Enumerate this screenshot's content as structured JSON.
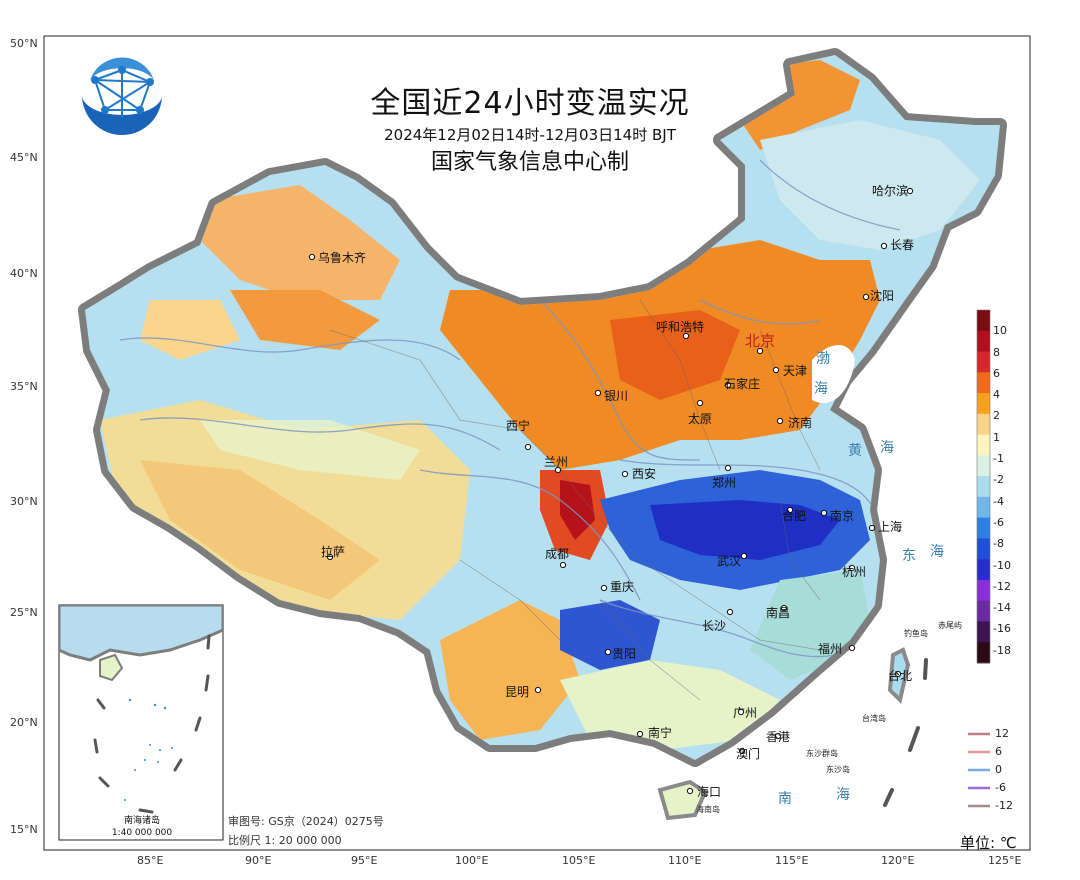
{
  "title": "全国近24小时变温实况",
  "time_range": "2024年12月02日14时-12月03日14时 BJT",
  "organization": "国家气象信息中心制",
  "lat_labels": [
    "50°N",
    "45°N",
    "40°N",
    "35°N",
    "30°N",
    "25°N",
    "20°N",
    "15°N"
  ],
  "lon_labels": [
    "85°E",
    "90°E",
    "95°E",
    "100°E",
    "105°E",
    "110°E",
    "115°E",
    "120°E",
    "125°E"
  ],
  "legend": {
    "labels": [
      "10",
      "8",
      "6",
      "4",
      "2",
      "1",
      "-1",
      "-2",
      "-4",
      "-6",
      "-8",
      "-10",
      "-12",
      "-14",
      "-16",
      "-18"
    ],
    "colors": [
      "#7a0a14",
      "#b0101e",
      "#d9262a",
      "#ef6a1c",
      "#f7a020",
      "#f9d487",
      "#fbf4bd",
      "#d9f0e2",
      "#a9dcef",
      "#70b6ea",
      "#2f7fe0",
      "#1f4fd6",
      "#2a2cd0",
      "#8a2fd6",
      "#6a2aa0",
      "#3c1450",
      "#2a0a14"
    ]
  },
  "contour_legend": [
    {
      "label": "12",
      "color": "#c07a8a"
    },
    {
      "label": "6",
      "color": "#e09a98"
    },
    {
      "label": "0",
      "color": "#7aa8e0"
    },
    {
      "label": "-6",
      "color": "#9a6ad6"
    },
    {
      "label": "-12",
      "color": "#a08a8a"
    }
  ],
  "cities": [
    "哈尔滨",
    "长春",
    "沈阳",
    "乌鲁木齐",
    "呼和浩特",
    "北京",
    "天津",
    "石家庄",
    "太原",
    "银川",
    "济南",
    "西宁",
    "兰州",
    "西安",
    "郑州",
    "合肥",
    "南京",
    "上海",
    "武汉",
    "杭州",
    "成都",
    "重庆",
    "长沙",
    "南昌",
    "拉萨",
    "贵阳",
    "福州",
    "昆明",
    "台北",
    "南宁",
    "广州",
    "香港",
    "澳门",
    "海口"
  ],
  "seas": [
    "渤",
    "海",
    "黄",
    "海",
    "东",
    "海",
    "南",
    "海"
  ],
  "islands": [
    "钓鱼岛",
    "赤尾屿",
    "台湾岛",
    "东沙群岛",
    "东沙岛",
    "海南岛"
  ],
  "inset": {
    "name": "南海诸岛",
    "scale": "1:40 000 000"
  },
  "audit_number": "审图号: GS京（2024）0275号",
  "scale": "比例尺 1: 20 000 000",
  "unit": "单位: ℃",
  "colors": {
    "frame": "#222222",
    "border_shadow": "#888888",
    "sea_text": "#3a7fb0"
  }
}
